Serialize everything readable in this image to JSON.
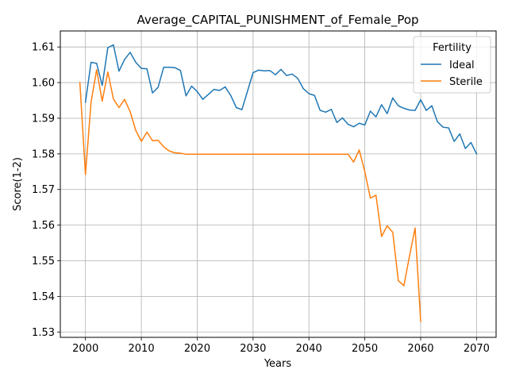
{
  "chart_data": {
    "type": "line",
    "title": "Average_CAPITAL_PUNISHMENT_of_Female_Pop",
    "xlabel": "Years",
    "ylabel": "Score(1-2)",
    "xlim": [
      1995.5,
      2073.5
    ],
    "ylim": [
      1.5285,
      1.6145
    ],
    "xticks": [
      2000,
      2010,
      2020,
      2030,
      2040,
      2050,
      2060,
      2070
    ],
    "xtick_labels": [
      "2000",
      "2010",
      "2020",
      "2030",
      "2040",
      "2050",
      "2060",
      "2070"
    ],
    "yticks": [
      1.53,
      1.54,
      1.55,
      1.56,
      1.57,
      1.58,
      1.59,
      1.6,
      1.61
    ],
    "ytick_labels": [
      "1.53",
      "1.54",
      "1.55",
      "1.56",
      "1.57",
      "1.58",
      "1.59",
      "1.60",
      "1.61"
    ],
    "grid": true,
    "legend": {
      "title": "Fertility",
      "placement": "top-right"
    },
    "series": [
      {
        "name": "Ideal",
        "color": "#1f77b4",
        "x": [
          2000,
          2001,
          2002,
          2003,
          2004,
          2005,
          2006,
          2007,
          2008,
          2009,
          2010,
          2011,
          2012,
          2013,
          2014,
          2015,
          2016,
          2017,
          2018,
          2019,
          2020,
          2021,
          2022,
          2023,
          2024,
          2025,
          2026,
          2027,
          2028,
          2029,
          2030,
          2031,
          2032,
          2033,
          2034,
          2035,
          2036,
          2037,
          2038,
          2039,
          2040,
          2041,
          2042,
          2043,
          2044,
          2045,
          2046,
          2047,
          2048,
          2049,
          2050,
          2051,
          2052,
          2053,
          2054,
          2055,
          2056,
          2057,
          2058,
          2059,
          2060,
          2061,
          2062,
          2063,
          2064,
          2065,
          2066,
          2067,
          2068,
          2069,
          2070
        ],
        "y": [
          1.5945,
          1.6057,
          1.6054,
          1.5992,
          1.6098,
          1.6106,
          1.6032,
          1.6065,
          1.6085,
          1.6057,
          1.604,
          1.6039,
          1.5971,
          1.5987,
          1.6043,
          1.6043,
          1.6042,
          1.6034,
          1.5963,
          1.599,
          1.5975,
          1.5953,
          1.5967,
          1.5981,
          1.5978,
          1.5988,
          1.5964,
          1.593,
          1.5924,
          1.5976,
          1.6028,
          1.6035,
          1.6033,
          1.6034,
          1.6022,
          1.6037,
          1.602,
          1.6024,
          1.6012,
          1.5983,
          1.5969,
          1.5964,
          1.5922,
          1.5917,
          1.5925,
          1.5888,
          1.5901,
          1.5883,
          1.5876,
          1.5886,
          1.5881,
          1.592,
          1.5904,
          1.5938,
          1.5913,
          1.5957,
          1.5935,
          1.5928,
          1.5923,
          1.5922,
          1.5952,
          1.5922,
          1.5935,
          1.589,
          1.5875,
          1.5873,
          1.5835,
          1.5856,
          1.5815,
          1.5832,
          1.58
        ]
      },
      {
        "name": "Sterile",
        "color": "#ff7f0e",
        "x": [
          1999,
          2000,
          2001,
          2002,
          2003,
          2004,
          2005,
          2006,
          2007,
          2008,
          2009,
          2010,
          2011,
          2012,
          2013,
          2014,
          2015,
          2016,
          2017,
          2018,
          2019,
          2020,
          2021,
          2022,
          2023,
          2024,
          2025,
          2026,
          2027,
          2028,
          2029,
          2030,
          2031,
          2032,
          2033,
          2034,
          2035,
          2036,
          2037,
          2038,
          2039,
          2040,
          2041,
          2042,
          2043,
          2044,
          2045,
          2046,
          2047,
          2048,
          2049,
          2050,
          2051,
          2052,
          2053,
          2054,
          2055,
          2056,
          2057,
          2058,
          2059,
          2060
        ],
        "y": [
          1.6,
          1.5742,
          1.5945,
          1.6036,
          1.5948,
          1.603,
          1.5954,
          1.593,
          1.5953,
          1.5918,
          1.5866,
          1.5835,
          1.5861,
          1.5837,
          1.5838,
          1.582,
          1.5808,
          1.5803,
          1.5802,
          1.5799,
          1.5799,
          1.5799,
          1.5799,
          1.5799,
          1.5799,
          1.5799,
          1.5799,
          1.5799,
          1.5799,
          1.5799,
          1.5799,
          1.5799,
          1.5799,
          1.5799,
          1.5799,
          1.5799,
          1.5799,
          1.5799,
          1.5799,
          1.5799,
          1.5799,
          1.5799,
          1.5799,
          1.5799,
          1.5799,
          1.5799,
          1.5799,
          1.5799,
          1.5799,
          1.5777,
          1.5811,
          1.575,
          1.5676,
          1.5684,
          1.5568,
          1.5598,
          1.558,
          1.5444,
          1.543,
          1.5513,
          1.5592,
          1.533
        ]
      }
    ]
  }
}
